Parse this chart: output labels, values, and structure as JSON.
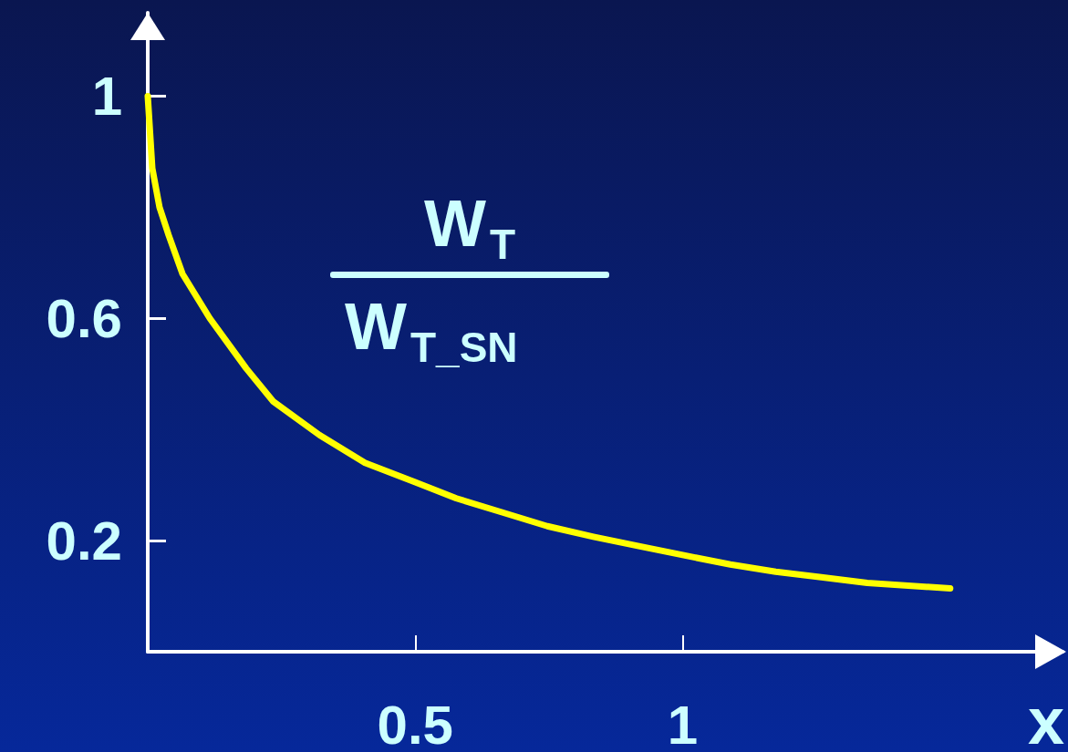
{
  "chart_data": {
    "type": "line",
    "annotations": [
      "W$_{T}$",
      "W$_{T_SN}$"
    ],
    "xlabel": "x",
    "xlim": [
      0,
      1.71
    ],
    "xticks": [
      0.5,
      1
    ],
    "ylim": [
      0,
      1.15
    ],
    "yticks": [
      0.2,
      0.6,
      1
    ],
    "series": [
      {
        "color": "#ffff00",
        "x": [
          0,
          0.0085,
          0.022,
          0.039,
          0.065,
          0.116,
          0.184,
          0.235,
          0.321,
          0.406,
          0.5,
          0.577,
          0.662,
          0.747,
          0.833,
          0.918,
          1.0,
          1.089,
          1.174,
          1.259,
          1.345,
          1.5
        ],
        "values": [
          1.0,
          0.87,
          0.8,
          0.75,
          0.68,
          0.6,
          0.51,
          0.45,
          0.39,
          0.34,
          0.305,
          0.276,
          0.251,
          0.226,
          0.207,
          0.19,
          0.174,
          0.157,
          0.144,
          0.134,
          0.124,
          0.114
        ]
      }
    ]
  }
}
